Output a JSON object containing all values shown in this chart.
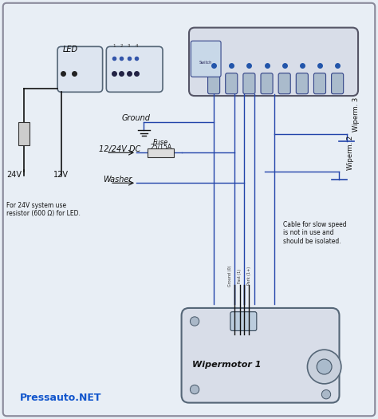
{
  "bg_color": "#e8eef5",
  "border_color": "#333333",
  "line_color": "#2244aa",
  "dark_line_color": "#111111",
  "text_color": "#000000",
  "blue_text_color": "#1155cc",
  "title": "Pressauto.NET",
  "annotations": {
    "led": "LED",
    "ground": "Ground",
    "fuse": "Fuse\n25/15A",
    "dc": "12/24V DC",
    "washer": "Washer",
    "wipermotor": "Wipermotor 1",
    "wiperm3": "Wiperm. 3",
    "wiperm2": "Wiperm. 2",
    "24v": "24V",
    "12v": "12V",
    "cable_note": "Cable for slow speed\nis not in use and\nshould be isolated.",
    "for_24v": "For 24V system use\nresistor (600 Ω) for LED."
  }
}
